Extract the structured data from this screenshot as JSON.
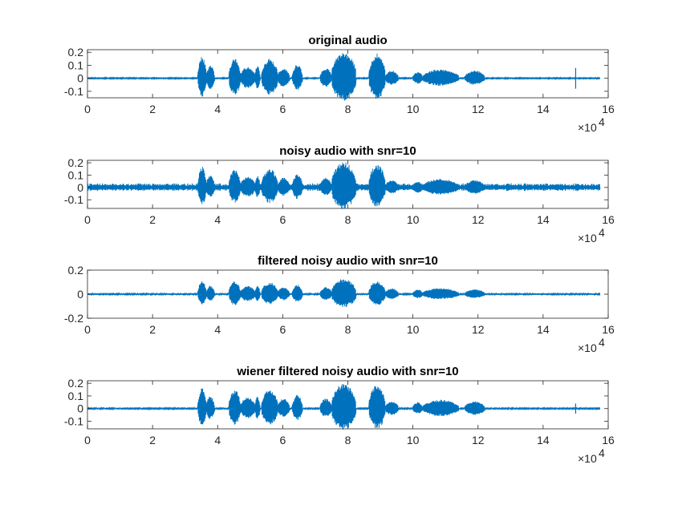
{
  "figure": {
    "background": "#ffffff",
    "series_color": "#0072bd",
    "axis_color": "#262626"
  },
  "chart_data": [
    {
      "type": "line",
      "title": "original audio",
      "xlabel": "",
      "ylabel": "",
      "xlim": [
        0,
        160000
      ],
      "ylim": [
        -0.15,
        0.22
      ],
      "xticks": [
        0,
        20000,
        40000,
        60000,
        80000,
        100000,
        120000,
        140000,
        160000
      ],
      "xtick_labels": [
        "0",
        "2",
        "4",
        "6",
        "8",
        "10",
        "12",
        "14",
        "16"
      ],
      "x_exponent_label": "×10",
      "x_exponent_power": "4",
      "yticks": [
        0.2,
        0.1,
        0,
        -0.1
      ],
      "ytick_labels": [
        "0.2",
        "0.1",
        "0",
        "-0.1"
      ],
      "grid": false,
      "noise_floor": 0.004,
      "transient": {
        "x": 150000,
        "amplitude": 0.08
      },
      "envelope": [
        {
          "x0": 34000,
          "x1": 36500,
          "amplitude": 0.17
        },
        {
          "x0": 36500,
          "x1": 39000,
          "amplitude": 0.1
        },
        {
          "x0": 43500,
          "x1": 47000,
          "amplitude": 0.15
        },
        {
          "x0": 47000,
          "x1": 51500,
          "amplitude": 0.09
        },
        {
          "x0": 51500,
          "x1": 53000,
          "amplitude": 0.1
        },
        {
          "x0": 53500,
          "x1": 58500,
          "amplitude": 0.15
        },
        {
          "x0": 58500,
          "x1": 62000,
          "amplitude": 0.08
        },
        {
          "x0": 63000,
          "x1": 66000,
          "amplitude": 0.11
        },
        {
          "x0": 71500,
          "x1": 75000,
          "amplitude": 0.08
        },
        {
          "x0": 75000,
          "x1": 82500,
          "amplitude": 0.21
        },
        {
          "x0": 86500,
          "x1": 91500,
          "amplitude": 0.19
        },
        {
          "x0": 91500,
          "x1": 95500,
          "amplitude": 0.06
        },
        {
          "x0": 100000,
          "x1": 103000,
          "amplitude": 0.05
        },
        {
          "x0": 103000,
          "x1": 114000,
          "amplitude": 0.07
        },
        {
          "x0": 116000,
          "x1": 122000,
          "amplitude": 0.06
        }
      ]
    },
    {
      "type": "line",
      "title": "noisy audio with snr=10",
      "xlabel": "",
      "ylabel": "",
      "xlim": [
        0,
        160000
      ],
      "ylim": [
        -0.17,
        0.22
      ],
      "xticks": [
        0,
        20000,
        40000,
        60000,
        80000,
        100000,
        120000,
        140000,
        160000
      ],
      "xtick_labels": [
        "0",
        "2",
        "4",
        "6",
        "8",
        "10",
        "12",
        "14",
        "16"
      ],
      "x_exponent_label": "×10",
      "x_exponent_power": "4",
      "yticks": [
        0.2,
        0.1,
        0,
        -0.1
      ],
      "ytick_labels": [
        "0.2",
        "0.1",
        "0",
        "-0.1"
      ],
      "grid": false,
      "noise_floor": 0.025,
      "transient": null,
      "envelope": [
        {
          "x0": 34000,
          "x1": 36500,
          "amplitude": 0.17
        },
        {
          "x0": 36500,
          "x1": 39000,
          "amplitude": 0.1
        },
        {
          "x0": 43500,
          "x1": 47000,
          "amplitude": 0.15
        },
        {
          "x0": 47000,
          "x1": 51500,
          "amplitude": 0.09
        },
        {
          "x0": 51500,
          "x1": 53000,
          "amplitude": 0.1
        },
        {
          "x0": 53500,
          "x1": 58500,
          "amplitude": 0.15
        },
        {
          "x0": 58500,
          "x1": 62000,
          "amplitude": 0.08
        },
        {
          "x0": 63000,
          "x1": 66000,
          "amplitude": 0.11
        },
        {
          "x0": 71500,
          "x1": 75000,
          "amplitude": 0.08
        },
        {
          "x0": 75000,
          "x1": 82500,
          "amplitude": 0.21
        },
        {
          "x0": 86500,
          "x1": 91500,
          "amplitude": 0.19
        },
        {
          "x0": 91500,
          "x1": 95500,
          "amplitude": 0.06
        },
        {
          "x0": 100000,
          "x1": 103000,
          "amplitude": 0.05
        },
        {
          "x0": 103000,
          "x1": 114000,
          "amplitude": 0.07
        },
        {
          "x0": 116000,
          "x1": 122000,
          "amplitude": 0.06
        }
      ]
    },
    {
      "type": "line",
      "title": "filtered noisy audio with snr=10",
      "xlabel": "",
      "ylabel": "",
      "xlim": [
        0,
        160000
      ],
      "ylim": [
        -0.2,
        0.2
      ],
      "xticks": [
        0,
        20000,
        40000,
        60000,
        80000,
        100000,
        120000,
        140000,
        160000
      ],
      "xtick_labels": [
        "0",
        "2",
        "4",
        "6",
        "8",
        "10",
        "12",
        "14",
        "16"
      ],
      "x_exponent_label": "×10",
      "x_exponent_power": "4",
      "yticks": [
        0.2,
        0,
        -0.2
      ],
      "ytick_labels": [
        "0.2",
        "0",
        "-0.2"
      ],
      "grid": false,
      "noise_floor": 0.006,
      "transient": null,
      "envelope": [
        {
          "x0": 34000,
          "x1": 36500,
          "amplitude": 0.11
        },
        {
          "x0": 36500,
          "x1": 39000,
          "amplitude": 0.07
        },
        {
          "x0": 43500,
          "x1": 47000,
          "amplitude": 0.11
        },
        {
          "x0": 47000,
          "x1": 51500,
          "amplitude": 0.07
        },
        {
          "x0": 51500,
          "x1": 53000,
          "amplitude": 0.07
        },
        {
          "x0": 53500,
          "x1": 58500,
          "amplitude": 0.1
        },
        {
          "x0": 58500,
          "x1": 62000,
          "amplitude": 0.06
        },
        {
          "x0": 63000,
          "x1": 66000,
          "amplitude": 0.08
        },
        {
          "x0": 71500,
          "x1": 75000,
          "amplitude": 0.06
        },
        {
          "x0": 75000,
          "x1": 82500,
          "amplitude": 0.13
        },
        {
          "x0": 86500,
          "x1": 91500,
          "amplitude": 0.11
        },
        {
          "x0": 91500,
          "x1": 95500,
          "amplitude": 0.05
        },
        {
          "x0": 100000,
          "x1": 103000,
          "amplitude": 0.04
        },
        {
          "x0": 103000,
          "x1": 114000,
          "amplitude": 0.05
        },
        {
          "x0": 116000,
          "x1": 122000,
          "amplitude": 0.04
        }
      ]
    },
    {
      "type": "line",
      "title": "wiener filtered noisy audio with snr=10",
      "xlabel": "",
      "ylabel": "",
      "xlim": [
        0,
        160000
      ],
      "ylim": [
        -0.16,
        0.22
      ],
      "xticks": [
        0,
        20000,
        40000,
        60000,
        80000,
        100000,
        120000,
        140000,
        160000
      ],
      "xtick_labels": [
        "0",
        "2",
        "4",
        "6",
        "8",
        "10",
        "12",
        "14",
        "16"
      ],
      "x_exponent_label": "×10",
      "x_exponent_power": "4",
      "yticks": [
        0.2,
        0.1,
        0,
        -0.1
      ],
      "ytick_labels": [
        "0.2",
        "0.1",
        "0",
        "-0.1"
      ],
      "grid": false,
      "noise_floor": 0.005,
      "transient": {
        "x": 150000,
        "amplitude": 0.04
      },
      "envelope": [
        {
          "x0": 34000,
          "x1": 36500,
          "amplitude": 0.17
        },
        {
          "x0": 36500,
          "x1": 39000,
          "amplitude": 0.1
        },
        {
          "x0": 43500,
          "x1": 47000,
          "amplitude": 0.15
        },
        {
          "x0": 47000,
          "x1": 51500,
          "amplitude": 0.09
        },
        {
          "x0": 51500,
          "x1": 53000,
          "amplitude": 0.1
        },
        {
          "x0": 53500,
          "x1": 58500,
          "amplitude": 0.15
        },
        {
          "x0": 58500,
          "x1": 62000,
          "amplitude": 0.08
        },
        {
          "x0": 63000,
          "x1": 66000,
          "amplitude": 0.11
        },
        {
          "x0": 71500,
          "x1": 75000,
          "amplitude": 0.08
        },
        {
          "x0": 75000,
          "x1": 82500,
          "amplitude": 0.2
        },
        {
          "x0": 86500,
          "x1": 91500,
          "amplitude": 0.19
        },
        {
          "x0": 91500,
          "x1": 95500,
          "amplitude": 0.06
        },
        {
          "x0": 100000,
          "x1": 103000,
          "amplitude": 0.05
        },
        {
          "x0": 103000,
          "x1": 114000,
          "amplitude": 0.07
        },
        {
          "x0": 116000,
          "x1": 122000,
          "amplitude": 0.06
        }
      ]
    }
  ]
}
